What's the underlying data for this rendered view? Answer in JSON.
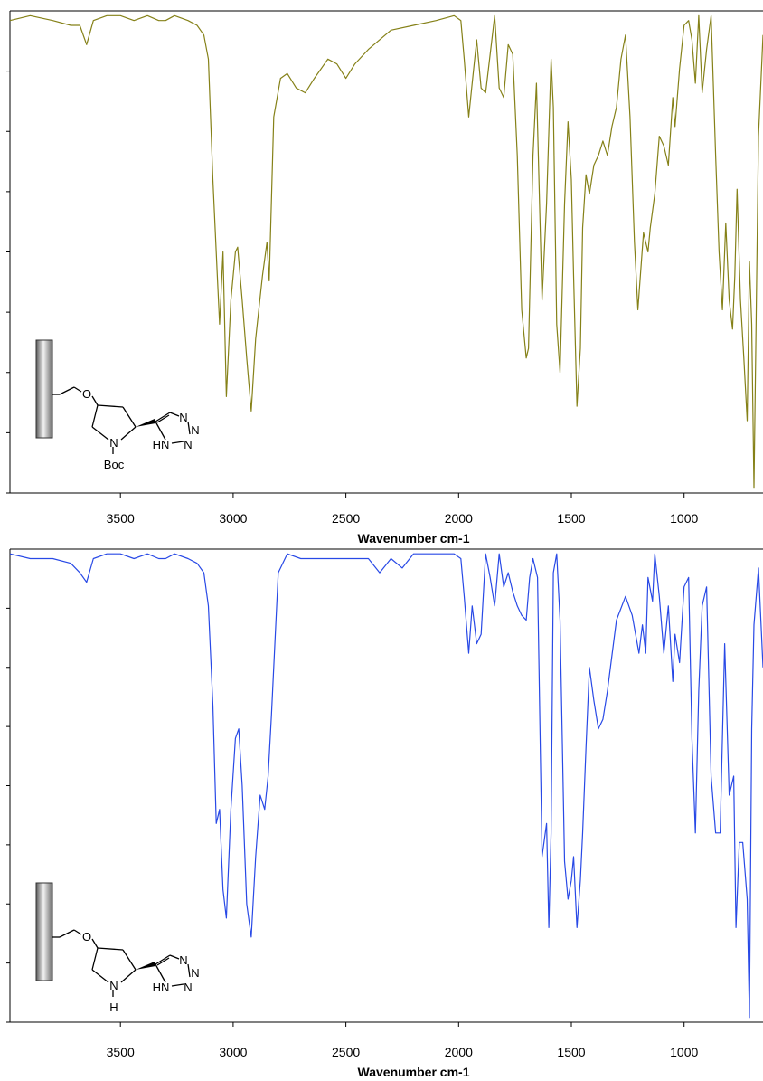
{
  "chart_data": [
    {
      "type": "line",
      "xlabel": "Wavenumber cm-1",
      "xlim": [
        3990,
        650
      ],
      "ylim": [
        0,
        1
      ],
      "x_ticks": [
        3500,
        3000,
        2500,
        2000,
        1500,
        1000
      ],
      "x_tick_labels": [
        "3500",
        "3000",
        "2500",
        "2000",
        "1500",
        "1000"
      ],
      "y_tick_count": 8,
      "grid": false,
      "color": "#858118",
      "structure_labels": {
        "o": "O",
        "n": "N",
        "sub": "Boc",
        "tz_n": "N",
        "tz_hn": "HN"
      },
      "series": [
        {
          "x": [
            3990,
            3900,
            3800,
            3720,
            3680,
            3650,
            3620,
            3560,
            3500,
            3440,
            3380,
            3330,
            3300,
            3260,
            3200,
            3160,
            3130,
            3110,
            3090,
            3070,
            3060,
            3045,
            3030,
            3010,
            2990,
            2980,
            2960,
            2940,
            2920,
            2900,
            2870,
            2850,
            2840,
            2820,
            2790,
            2760,
            2720,
            2680,
            2640,
            2580,
            2540,
            2500,
            2460,
            2400,
            2300,
            2200,
            2100,
            2020,
            1990,
            1975,
            1955,
            1940,
            1920,
            1900,
            1880,
            1860,
            1840,
            1820,
            1800,
            1780,
            1760,
            1740,
            1720,
            1700,
            1690,
            1680,
            1670,
            1655,
            1630,
            1610,
            1590,
            1580,
            1565,
            1550,
            1530,
            1515,
            1500,
            1490,
            1475,
            1460,
            1450,
            1435,
            1420,
            1400,
            1380,
            1360,
            1340,
            1320,
            1300,
            1280,
            1260,
            1240,
            1220,
            1205,
            1180,
            1160,
            1150,
            1130,
            1110,
            1090,
            1070,
            1050,
            1040,
            1020,
            1000,
            980,
            965,
            950,
            935,
            920,
            900,
            880,
            860,
            845,
            830,
            815,
            800,
            785,
            775,
            765,
            750,
            735,
            720,
            710,
            700,
            690,
            670,
            650
          ],
          "y": [
            0.02,
            0.01,
            0.02,
            0.03,
            0.03,
            0.07,
            0.02,
            0.01,
            0.01,
            0.02,
            0.01,
            0.02,
            0.02,
            0.01,
            0.02,
            0.03,
            0.05,
            0.1,
            0.35,
            0.55,
            0.65,
            0.5,
            0.8,
            0.6,
            0.5,
            0.49,
            0.6,
            0.72,
            0.83,
            0.68,
            0.55,
            0.48,
            0.56,
            0.22,
            0.14,
            0.13,
            0.16,
            0.17,
            0.14,
            0.1,
            0.11,
            0.14,
            0.11,
            0.08,
            0.04,
            0.03,
            0.02,
            0.01,
            0.02,
            0.1,
            0.22,
            0.15,
            0.06,
            0.16,
            0.17,
            0.09,
            0.01,
            0.16,
            0.18,
            0.07,
            0.09,
            0.3,
            0.62,
            0.72,
            0.7,
            0.5,
            0.3,
            0.15,
            0.6,
            0.4,
            0.1,
            0.2,
            0.65,
            0.75,
            0.4,
            0.23,
            0.35,
            0.55,
            0.82,
            0.7,
            0.45,
            0.34,
            0.38,
            0.32,
            0.3,
            0.27,
            0.3,
            0.24,
            0.2,
            0.1,
            0.05,
            0.22,
            0.48,
            0.62,
            0.46,
            0.5,
            0.45,
            0.38,
            0.26,
            0.28,
            0.32,
            0.18,
            0.24,
            0.12,
            0.03,
            0.02,
            0.06,
            0.15,
            0.01,
            0.17,
            0.08,
            0.01,
            0.3,
            0.5,
            0.62,
            0.44,
            0.6,
            0.66,
            0.55,
            0.37,
            0.6,
            0.72,
            0.85,
            0.52,
            0.65,
            0.99,
            0.26,
            0.05
          ]
        }
      ]
    },
    {
      "type": "line",
      "xlabel": "Wavenumber cm-1",
      "xlim": [
        3990,
        650
      ],
      "ylim": [
        0,
        1
      ],
      "x_ticks": [
        3500,
        3000,
        2500,
        2000,
        1500,
        1000
      ],
      "x_tick_labels": [
        "3500",
        "3000",
        "2500",
        "2000",
        "1500",
        "1000"
      ],
      "y_tick_count": 8,
      "grid": false,
      "color": "#2849e6",
      "structure_labels": {
        "o": "O",
        "n": "N",
        "sub": "H",
        "tz_n": "N",
        "tz_hn": "HN"
      },
      "series": [
        {
          "x": [
            3990,
            3900,
            3800,
            3720,
            3680,
            3650,
            3620,
            3560,
            3500,
            3440,
            3380,
            3330,
            3300,
            3260,
            3200,
            3160,
            3130,
            3110,
            3090,
            3075,
            3060,
            3045,
            3030,
            3010,
            2990,
            2975,
            2960,
            2940,
            2920,
            2900,
            2880,
            2860,
            2845,
            2830,
            2800,
            2760,
            2700,
            2600,
            2500,
            2400,
            2350,
            2300,
            2250,
            2200,
            2100,
            2020,
            1990,
            1975,
            1955,
            1940,
            1920,
            1900,
            1880,
            1860,
            1840,
            1820,
            1800,
            1780,
            1760,
            1740,
            1720,
            1700,
            1685,
            1670,
            1650,
            1630,
            1610,
            1600,
            1590,
            1580,
            1565,
            1550,
            1530,
            1515,
            1500,
            1490,
            1475,
            1460,
            1450,
            1435,
            1420,
            1400,
            1380,
            1360,
            1340,
            1300,
            1260,
            1230,
            1200,
            1185,
            1170,
            1160,
            1140,
            1130,
            1110,
            1090,
            1070,
            1050,
            1040,
            1020,
            1000,
            980,
            965,
            950,
            935,
            920,
            900,
            880,
            860,
            840,
            820,
            800,
            780,
            770,
            755,
            740,
            720,
            710,
            700,
            690,
            670,
            650
          ],
          "y": [
            0.01,
            0.02,
            0.02,
            0.03,
            0.05,
            0.07,
            0.02,
            0.01,
            0.01,
            0.02,
            0.01,
            0.02,
            0.02,
            0.01,
            0.02,
            0.03,
            0.05,
            0.12,
            0.33,
            0.58,
            0.55,
            0.72,
            0.78,
            0.55,
            0.4,
            0.38,
            0.5,
            0.75,
            0.82,
            0.65,
            0.52,
            0.55,
            0.48,
            0.35,
            0.05,
            0.01,
            0.02,
            0.02,
            0.02,
            0.02,
            0.05,
            0.02,
            0.04,
            0.01,
            0.01,
            0.01,
            0.02,
            0.1,
            0.22,
            0.12,
            0.2,
            0.18,
            0.01,
            0.06,
            0.12,
            0.01,
            0.08,
            0.05,
            0.09,
            0.12,
            0.14,
            0.15,
            0.06,
            0.02,
            0.06,
            0.65,
            0.58,
            0.8,
            0.6,
            0.05,
            0.01,
            0.15,
            0.66,
            0.74,
            0.7,
            0.65,
            0.8,
            0.7,
            0.6,
            0.42,
            0.25,
            0.32,
            0.38,
            0.36,
            0.3,
            0.15,
            0.1,
            0.14,
            0.22,
            0.16,
            0.22,
            0.06,
            0.11,
            0.01,
            0.1,
            0.22,
            0.12,
            0.28,
            0.18,
            0.24,
            0.08,
            0.06,
            0.4,
            0.6,
            0.3,
            0.12,
            0.08,
            0.48,
            0.6,
            0.6,
            0.2,
            0.52,
            0.48,
            0.8,
            0.62,
            0.62,
            0.74,
            0.99,
            0.38,
            0.16,
            0.04,
            0.25
          ]
        }
      ]
    }
  ]
}
